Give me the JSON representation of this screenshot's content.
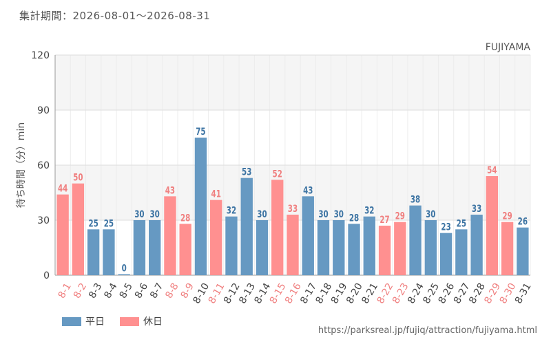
{
  "period_label": "集計期間：2026-08-01～2026-08-31",
  "attraction_name": "FUJIYAMA",
  "source_url": "https://parksreal.jp/fujiq/attraction/fujiyama.html",
  "colors": {
    "weekday": "#6699c2",
    "holiday": "#ff9090",
    "weekday_text": "#3d74a3",
    "holiday_text": "#f08080",
    "axis_text": "#555555",
    "band": "#f5f5f5",
    "grid": "#dddddd"
  },
  "legend": [
    {
      "label": "平日",
      "color": "#6699c2"
    },
    {
      "label": "休日",
      "color": "#ff9090"
    }
  ],
  "chart_data": {
    "type": "bar",
    "ylabel": "待ち時間（分）min",
    "ylim": [
      0,
      120
    ],
    "yticks": [
      0,
      30,
      60,
      90,
      120
    ],
    "grid": true,
    "legend_position": "bottom-left",
    "categories": [
      "8-1",
      "8-2",
      "8-3",
      "8-4",
      "8-5",
      "8-6",
      "8-7",
      "8-8",
      "8-9",
      "8-10",
      "8-11",
      "8-12",
      "8-13",
      "8-14",
      "8-15",
      "8-16",
      "8-17",
      "8-18",
      "8-19",
      "8-20",
      "8-21",
      "8-22",
      "8-23",
      "8-24",
      "8-25",
      "8-26",
      "8-27",
      "8-28",
      "8-29",
      "8-30",
      "8-31"
    ],
    "values": [
      44,
      50,
      25,
      25,
      0,
      30,
      30,
      43,
      28,
      75,
      41,
      32,
      53,
      30,
      52,
      33,
      43,
      30,
      30,
      28,
      32,
      27,
      29,
      38,
      30,
      23,
      25,
      33,
      54,
      29,
      26
    ],
    "day_type": [
      "休日",
      "休日",
      "平日",
      "平日",
      "平日",
      "平日",
      "平日",
      "休日",
      "休日",
      "平日",
      "休日",
      "平日",
      "平日",
      "平日",
      "休日",
      "休日",
      "平日",
      "平日",
      "平日",
      "平日",
      "平日",
      "休日",
      "休日",
      "平日",
      "平日",
      "平日",
      "平日",
      "平日",
      "休日",
      "休日",
      "平日"
    ],
    "series": [
      {
        "name": "平日",
        "color": "#6699c2"
      },
      {
        "name": "休日",
        "color": "#ff9090"
      }
    ]
  }
}
